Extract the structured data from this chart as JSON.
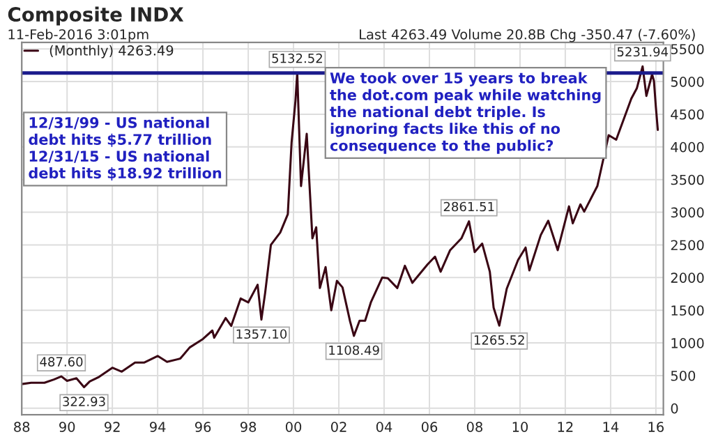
{
  "chart_data": {
    "type": "line",
    "title": "Composite INDX",
    "subtitle": "11-Feb-2016 3:01pm",
    "x": [
      "1988-01",
      "1988-06",
      "1989-01",
      "1989-06",
      "1989-10",
      "1990-01",
      "1990-06",
      "1990-10",
      "1991-01",
      "1991-06",
      "1992-01",
      "1992-06",
      "1993-01",
      "1993-06",
      "1994-01",
      "1994-06",
      "1995-01",
      "1995-06",
      "1996-01",
      "1996-06",
      "1996-07",
      "1997-01",
      "1997-04",
      "1997-09",
      "1998-01",
      "1998-06",
      "1998-08",
      "1998-10",
      "1999-01",
      "1999-06",
      "1999-10",
      "1999-12",
      "2000-02",
      "2000-03",
      "2000-05",
      "2000-08",
      "2000-11",
      "2001-01",
      "2001-03",
      "2001-06",
      "2001-09",
      "2001-12",
      "2002-03",
      "2002-07",
      "2002-09",
      "2002-12",
      "2003-03",
      "2003-06",
      "2003-12",
      "2004-03",
      "2004-08",
      "2004-12",
      "2005-04",
      "2005-12",
      "2006-04",
      "2006-07",
      "2006-12",
      "2007-06",
      "2007-10",
      "2008-01",
      "2008-05",
      "2008-09",
      "2008-11",
      "2009-02",
      "2009-06",
      "2009-12",
      "2010-04",
      "2010-06",
      "2010-12",
      "2011-04",
      "2011-09",
      "2012-03",
      "2012-05",
      "2012-09",
      "2012-11",
      "2013-06",
      "2013-12",
      "2014-04",
      "2014-12",
      "2015-03",
      "2015-06",
      "2015-08",
      "2015-11",
      "2015-12",
      "2016-01",
      "2016-02"
    ],
    "series": [
      {
        "name": "(Monthly) 4263.49",
        "color": "#3a0614",
        "values": [
          370,
          390,
          390,
          440,
          487.6,
          420,
          460,
          322.93,
          410,
          480,
          620,
          560,
          700,
          700,
          800,
          710,
          760,
          930,
          1060,
          1190,
          1080,
          1380,
          1260,
          1680,
          1620,
          1890,
          1357.1,
          1770,
          2500,
          2690,
          2970,
          4070,
          4700,
          5132.52,
          3400,
          4200,
          2600,
          2770,
          1840,
          2160,
          1500,
          1950,
          1850,
          1330,
          1108.49,
          1340,
          1340,
          1620,
          2000,
          1990,
          1840,
          2180,
          1920,
          2200,
          2320,
          2090,
          2420,
          2600,
          2861.51,
          2390,
          2520,
          2090,
          1540,
          1265.52,
          1830,
          2270,
          2460,
          2110,
          2650,
          2870,
          2420,
          3090,
          2830,
          3120,
          3010,
          3400,
          4180,
          4110,
          4740,
          4900,
          5231.94,
          4780,
          5110,
          5010,
          4610,
          4260
        ]
      }
    ],
    "xlim": [
      "1988-01",
      "2016-05"
    ],
    "xticks": [
      {
        "value": "1988-01",
        "label": "88"
      },
      {
        "value": "1990-01",
        "label": "90"
      },
      {
        "value": "1992-01",
        "label": "92"
      },
      {
        "value": "1994-01",
        "label": "94"
      },
      {
        "value": "1996-01",
        "label": "96"
      },
      {
        "value": "1998-01",
        "label": "98"
      },
      {
        "value": "2000-01",
        "label": "00"
      },
      {
        "value": "2002-01",
        "label": "02"
      },
      {
        "value": "2004-01",
        "label": "04"
      },
      {
        "value": "2006-01",
        "label": "06"
      },
      {
        "value": "2008-01",
        "label": "08"
      },
      {
        "value": "2010-01",
        "label": "10"
      },
      {
        "value": "2012-01",
        "label": "12"
      },
      {
        "value": "2014-01",
        "label": "14"
      },
      {
        "value": "2016-01",
        "label": "16"
      }
    ],
    "ylim": [
      -100,
      5600
    ],
    "yticks": [
      0,
      500,
      1000,
      1500,
      2000,
      2500,
      3000,
      3500,
      4000,
      4500,
      5000,
      5500
    ],
    "grid": true,
    "legend": "top left",
    "marker": "none",
    "line_style": "solid",
    "ref_lines": [
      {
        "axis": "y",
        "value": 5132.52,
        "color": "#1c1c8c"
      }
    ],
    "annotations": [
      "Last 4263.49 Volume 20.8B Chg -350.47 (-7.60%)",
      {
        "text": "487.60",
        "x": "1989-10",
        "y": 487.6
      },
      {
        "text": "322.93",
        "x": "1990-10",
        "y": 322.93
      },
      {
        "text": "1357.10",
        "x": "1998-08",
        "y": 1357.1
      },
      {
        "text": "5132.52",
        "x": "2000-03",
        "y": 5132.52
      },
      {
        "text": "1108.49",
        "x": "2002-09",
        "y": 1108.49
      },
      {
        "text": "2861.51",
        "x": "2007-10",
        "y": 2861.51
      },
      {
        "text": "1265.52",
        "x": "2009-02",
        "y": 1265.52
      },
      {
        "text": "5231.94",
        "x": "2015-06",
        "y": 5231.94
      },
      "12/31/99 - US national\ndebt hits $5.77 trillion\n12/31/15 - US national\ndebt hits $18.92 trillion",
      "We took over 15 years to break\nthe dot.com peak while watching\nthe national debt triple. Is\nignoring facts like this of no\nconsequence to the public?"
    ]
  }
}
